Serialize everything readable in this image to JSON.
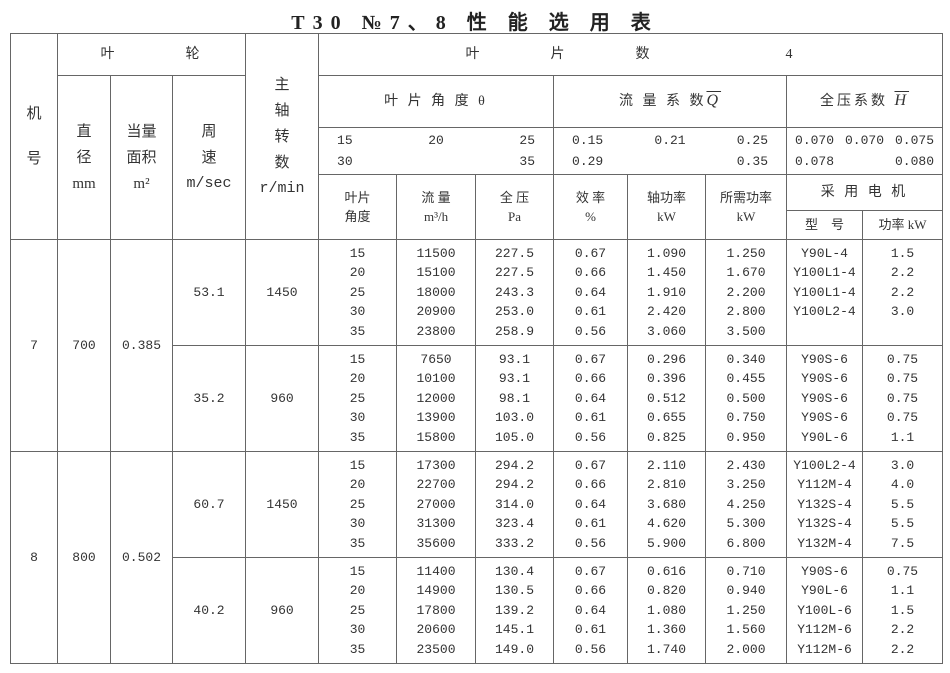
{
  "title": "T30 №7、8 性 能 选 用 表",
  "header": {
    "machine_no": [
      "机",
      "号"
    ],
    "impeller": "叶　　　　轮",
    "diameter": [
      "直",
      "径"
    ],
    "diameter_unit": "mm",
    "area": [
      "当量",
      "面积"
    ],
    "area_unit": "m²",
    "tip_speed": [
      "周",
      "速"
    ],
    "tip_speed_unit": "m/sec",
    "shaft_speed": [
      "主",
      "轴",
      "转",
      "数"
    ],
    "shaft_speed_unit": "r/min",
    "blade_count_label": "叶　　　　片　　　　数",
    "blade_count": "4",
    "blade_angle_label": "叶 片 角 度 θ",
    "flow_coef_label": "流 量 系 数",
    "flow_coef_symbol": "Q",
    "pressure_coef_label": "全压系数",
    "pressure_coef_symbol": "H",
    "angles": [
      "15",
      "20",
      "25",
      "30",
      "35"
    ],
    "flow_coefs": [
      "0.15",
      "0.21",
      "0.25",
      "0.29",
      "0.35"
    ],
    "pressure_coefs": [
      "0.070",
      "0.070",
      "0.075",
      "0.078",
      "0.080"
    ],
    "col_angle": [
      "叶片",
      "角度"
    ],
    "col_flow": "流 量",
    "col_flow_unit": "m³/h",
    "col_pressure": "全 压",
    "col_pressure_unit": "Pa",
    "col_eff": "效 率",
    "col_eff_unit": "%",
    "col_shaft_power": "轴功率",
    "col_shaft_power_unit": "kW",
    "col_req_power": "所需功率",
    "col_req_power_unit": "kW",
    "col_motor": "采 用 电 机",
    "col_motor_model": "型　号",
    "col_motor_power": "功率 kW"
  },
  "blocks": [
    {
      "machine": "7",
      "diameter": "700",
      "area": "0.385",
      "speeds": [
        {
          "speed": "53.1",
          "rpm": "1450",
          "rows": [
            [
              "15",
              "11500",
              "227.5",
              "0.67",
              "1.090",
              "1.250",
              "Y90L-4",
              "1.5"
            ],
            [
              "20",
              "15100",
              "227.5",
              "0.66",
              "1.450",
              "1.670",
              "Y100L1-4",
              "2.2"
            ],
            [
              "25",
              "18000",
              "243.3",
              "0.64",
              "1.910",
              "2.200",
              "Y100L1-4",
              "2.2"
            ],
            [
              "30",
              "20900",
              "253.0",
              "0.61",
              "2.420",
              "2.800",
              "Y100L2-4",
              "3.0"
            ],
            [
              "35",
              "23800",
              "258.9",
              "0.56",
              "3.060",
              "3.500",
              "",
              ""
            ]
          ]
        },
        {
          "speed": "35.2",
          "rpm": "960",
          "rows": [
            [
              "15",
              "7650",
              "93.1",
              "0.67",
              "0.296",
              "0.340",
              "Y90S-6",
              "0.75"
            ],
            [
              "20",
              "10100",
              "93.1",
              "0.66",
              "0.396",
              "0.455",
              "Y90S-6",
              "0.75"
            ],
            [
              "25",
              "12000",
              "98.1",
              "0.64",
              "0.512",
              "0.500",
              "Y90S-6",
              "0.75"
            ],
            [
              "30",
              "13900",
              "103.0",
              "0.61",
              "0.655",
              "0.750",
              "Y90S-6",
              "0.75"
            ],
            [
              "35",
              "15800",
              "105.0",
              "0.56",
              "0.825",
              "0.950",
              "Y90L-6",
              "1.1"
            ]
          ]
        }
      ]
    },
    {
      "machine": "8",
      "diameter": "800",
      "area": "0.502",
      "speeds": [
        {
          "speed": "60.7",
          "rpm": "1450",
          "rows": [
            [
              "15",
              "17300",
              "294.2",
              "0.67",
              "2.110",
              "2.430",
              "Y100L2-4",
              "3.0"
            ],
            [
              "20",
              "22700",
              "294.2",
              "0.66",
              "2.810",
              "3.250",
              "Y112M-4",
              "4.0"
            ],
            [
              "25",
              "27000",
              "314.0",
              "0.64",
              "3.680",
              "4.250",
              "Y132S-4",
              "5.5"
            ],
            [
              "30",
              "31300",
              "323.4",
              "0.61",
              "4.620",
              "5.300",
              "Y132S-4",
              "5.5"
            ],
            [
              "35",
              "35600",
              "333.2",
              "0.56",
              "5.900",
              "6.800",
              "Y132M-4",
              "7.5"
            ]
          ]
        },
        {
          "speed": "40.2",
          "rpm": "960",
          "rows": [
            [
              "15",
              "11400",
              "130.4",
              "0.67",
              "0.616",
              "0.710",
              "Y90S-6",
              "0.75"
            ],
            [
              "20",
              "14900",
              "130.5",
              "0.66",
              "0.820",
              "0.940",
              "Y90L-6",
              "1.1"
            ],
            [
              "25",
              "17800",
              "139.2",
              "0.64",
              "1.080",
              "1.250",
              "Y100L-6",
              "1.5"
            ],
            [
              "30",
              "20600",
              "145.1",
              "0.61",
              "1.360",
              "1.560",
              "Y112M-6",
              "2.2"
            ],
            [
              "35",
              "23500",
              "149.0",
              "0.56",
              "1.740",
              "2.000",
              "Y112M-6",
              "2.2"
            ]
          ]
        }
      ]
    }
  ]
}
